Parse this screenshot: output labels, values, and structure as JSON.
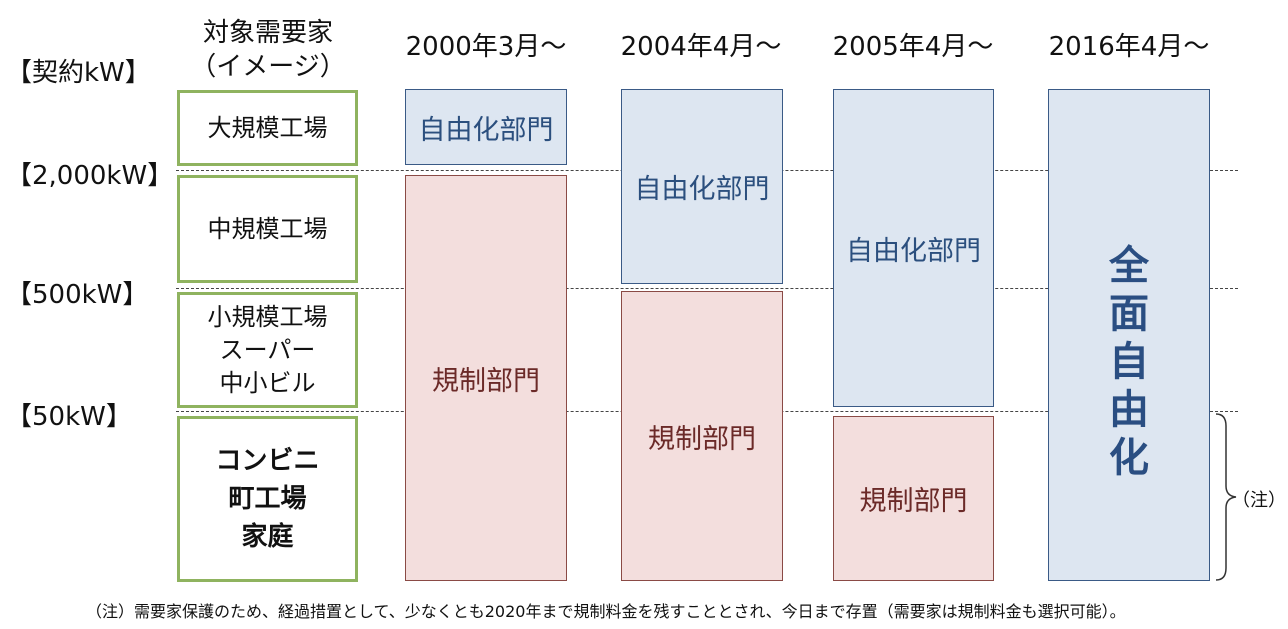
{
  "axis_title": "【契約kW】",
  "threshold_labels": [
    "【2,000kW】",
    "【500kW】",
    "【50kW】"
  ],
  "customer_header": [
    "対象需要家",
    "（イメージ）"
  ],
  "customers": [
    {
      "lines": [
        "大規模工場"
      ]
    },
    {
      "lines": [
        "中規模工場"
      ]
    },
    {
      "lines": [
        "小規模工場",
        "スーパー",
        "中小ビル"
      ]
    },
    {
      "lines": [
        "コンビニ",
        "町工場",
        "家庭"
      ]
    }
  ],
  "columns": [
    {
      "title": "2000年3月～",
      "liberalized": "自由化部門",
      "regulated": "規制部門"
    },
    {
      "title": "2004年4月～",
      "liberalized": "自由化部門",
      "regulated": "規制部門"
    },
    {
      "title": "2005年4月～",
      "liberalized": "自由化部門",
      "regulated": "規制部門"
    },
    {
      "title": "2016年4月～",
      "full": [
        "全",
        "面",
        "自",
        "由",
        "化"
      ]
    }
  ],
  "note_marker": "（注）",
  "footnote": "（注）需要家保護のため、経過措置として、少なくとも2020年まで規制料金を残すこととされ、今日まで存置（需要家は規制料金も選択可能）。",
  "colors": {
    "liberalized_fill": "#dde6f1",
    "regulated_fill": "#f3dedd",
    "customer_border": "#8fb35f",
    "full_text": "#2a4e82"
  }
}
